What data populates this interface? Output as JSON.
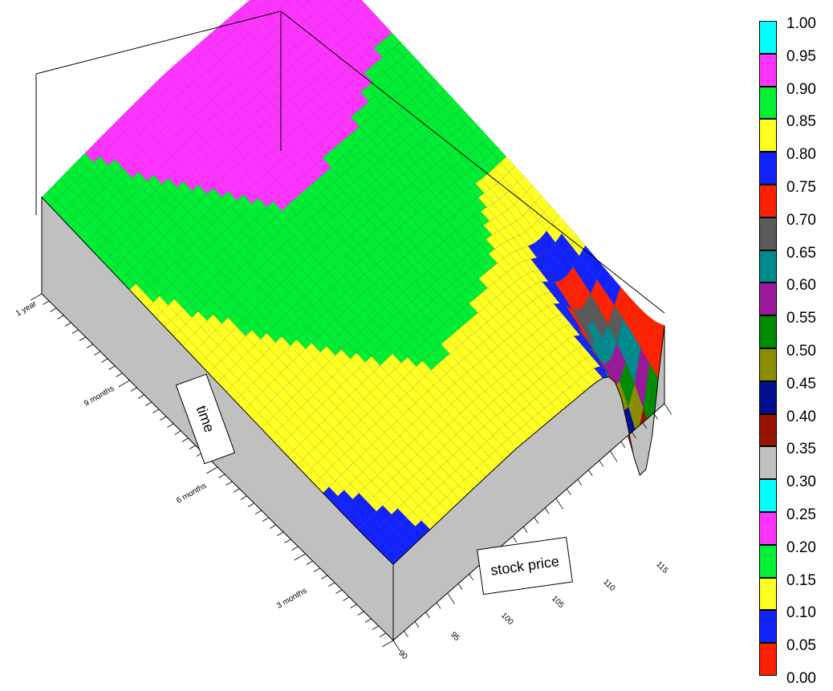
{
  "chart_data": {
    "type": "surface",
    "title": "",
    "xlabel": "stock price",
    "ylabel": "time",
    "x_ticks": [
      "90",
      "95",
      "100",
      "105",
      "110",
      "115"
    ],
    "x_range": [
      90,
      115
    ],
    "y_ticks": [
      "3 months",
      "6 months",
      "9 months",
      "1 year"
    ],
    "colorscale": {
      "levels": [
        {
          "label": "1.00",
          "color": "#00ffff"
        },
        {
          "label": "0.95",
          "color": "#ff33ff"
        },
        {
          "label": "0.90",
          "color": "#00ee33"
        },
        {
          "label": "0.85",
          "color": "#ffff22"
        },
        {
          "label": "0.80",
          "color": "#1122ff"
        },
        {
          "label": "0.75",
          "color": "#ff2200"
        },
        {
          "label": "0.70",
          "color": "#5a5a5a"
        },
        {
          "label": "0.65",
          "color": "#008a8f"
        },
        {
          "label": "0.60",
          "color": "#991a99"
        },
        {
          "label": "0.55",
          "color": "#008c00"
        },
        {
          "label": "0.50",
          "color": "#8c8c00"
        },
        {
          "label": "0.45",
          "color": "#001090"
        },
        {
          "label": "0.40",
          "color": "#991100"
        },
        {
          "label": "0.35",
          "color": "#c0c0c0"
        },
        {
          "label": "0.30",
          "color": "#00ffff"
        },
        {
          "label": "0.25",
          "color": "#ff33ff"
        },
        {
          "label": "0.20",
          "color": "#00ee33"
        },
        {
          "label": "0.15",
          "color": "#ffff22"
        },
        {
          "label": "0.10",
          "color": "#1122ff"
        },
        {
          "label": "0.05",
          "color": "#ff2200"
        },
        {
          "label": "0.00",
          "color": ""
        }
      ]
    },
    "grid": true,
    "legend_position": "right"
  }
}
